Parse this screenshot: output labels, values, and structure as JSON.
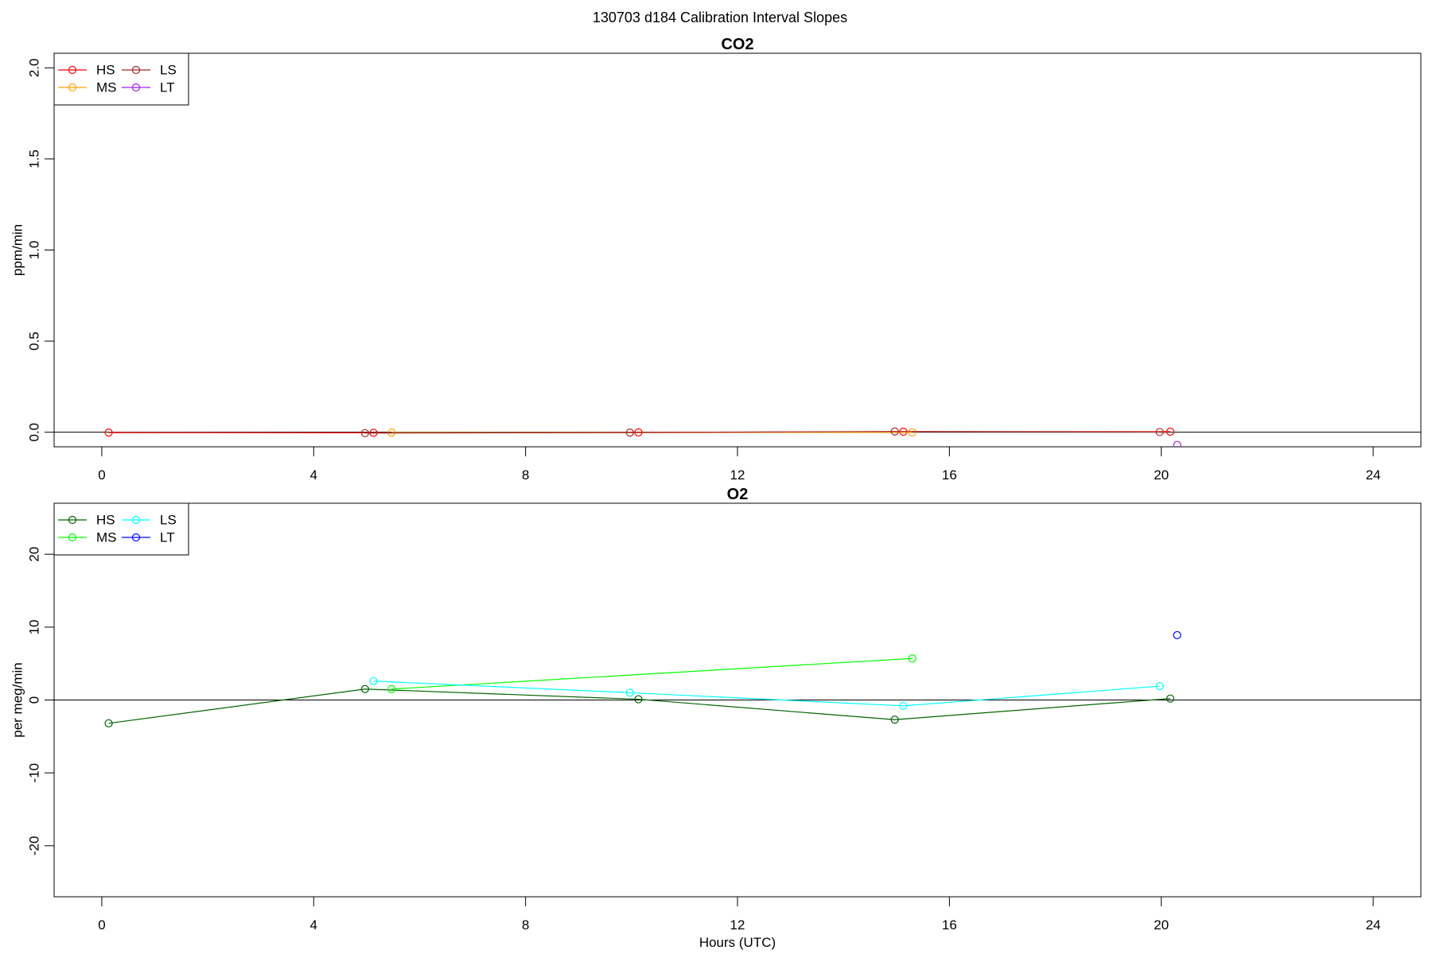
{
  "title": "130703   d184   Calibration Interval Slopes",
  "chart_data": [
    {
      "type": "line",
      "title": "CO2",
      "xlabel": "",
      "ylabel": "ppm/min",
      "xlim": [
        -0.9,
        24.9
      ],
      "ylim": [
        -0.08,
        2.08
      ],
      "xticks": [
        0,
        4,
        8,
        12,
        16,
        20,
        24
      ],
      "yticks": [
        0.0,
        0.5,
        1.0,
        1.5,
        2.0
      ],
      "ytick_labels": [
        "0.0",
        "0.5",
        "1.0",
        "1.5",
        "2.0"
      ],
      "zero_line": true,
      "legend_position": "top-left",
      "series": [
        {
          "name": "HS",
          "color": "#ff0000",
          "x": [
            0.13,
            5.13,
            10.13,
            15.13,
            20.17
          ],
          "y": [
            -0.002,
            -0.003,
            -0.001,
            0.003,
            0.003
          ]
        },
        {
          "name": "MS",
          "color": "#ffa500",
          "x": [
            5.47,
            15.3
          ],
          "y": [
            -0.002,
            -0.001
          ]
        },
        {
          "name": "LS",
          "color": "#a52a2a",
          "x": [
            4.97,
            9.97,
            14.97,
            19.97
          ],
          "y": [
            -0.005,
            -0.002,
            0.004,
            0.001
          ]
        },
        {
          "name": "LT",
          "color": "#a020f0",
          "x": [
            20.3
          ],
          "y": [
            -0.07
          ]
        }
      ]
    },
    {
      "type": "line",
      "title": "O2",
      "xlabel": "Hours (UTC)",
      "ylabel": "per meg/min",
      "xlim": [
        -0.9,
        24.9
      ],
      "ylim": [
        -27,
        27
      ],
      "xticks": [
        0,
        4,
        8,
        12,
        16,
        20,
        24
      ],
      "yticks": [
        -20,
        -10,
        0,
        10,
        20
      ],
      "ytick_labels": [
        "-20",
        "-10",
        "0",
        "10",
        "20"
      ],
      "zero_line": true,
      "legend_position": "top-left",
      "series": [
        {
          "name": "HS",
          "color": "#006400",
          "x": [
            0.13,
            4.97,
            10.13,
            14.97,
            20.17
          ],
          "y": [
            -3.2,
            1.5,
            0.1,
            -2.7,
            0.2
          ]
        },
        {
          "name": "MS",
          "color": "#00ff00",
          "x": [
            5.47,
            15.3
          ],
          "y": [
            1.5,
            5.7
          ]
        },
        {
          "name": "LS",
          "color": "#00ffff",
          "x": [
            5.13,
            9.97,
            15.13,
            19.97
          ],
          "y": [
            2.6,
            1.0,
            -0.8,
            1.9
          ]
        },
        {
          "name": "LT",
          "color": "#0000ff",
          "x": [
            20.3
          ],
          "y": [
            8.9
          ]
        }
      ]
    }
  ]
}
